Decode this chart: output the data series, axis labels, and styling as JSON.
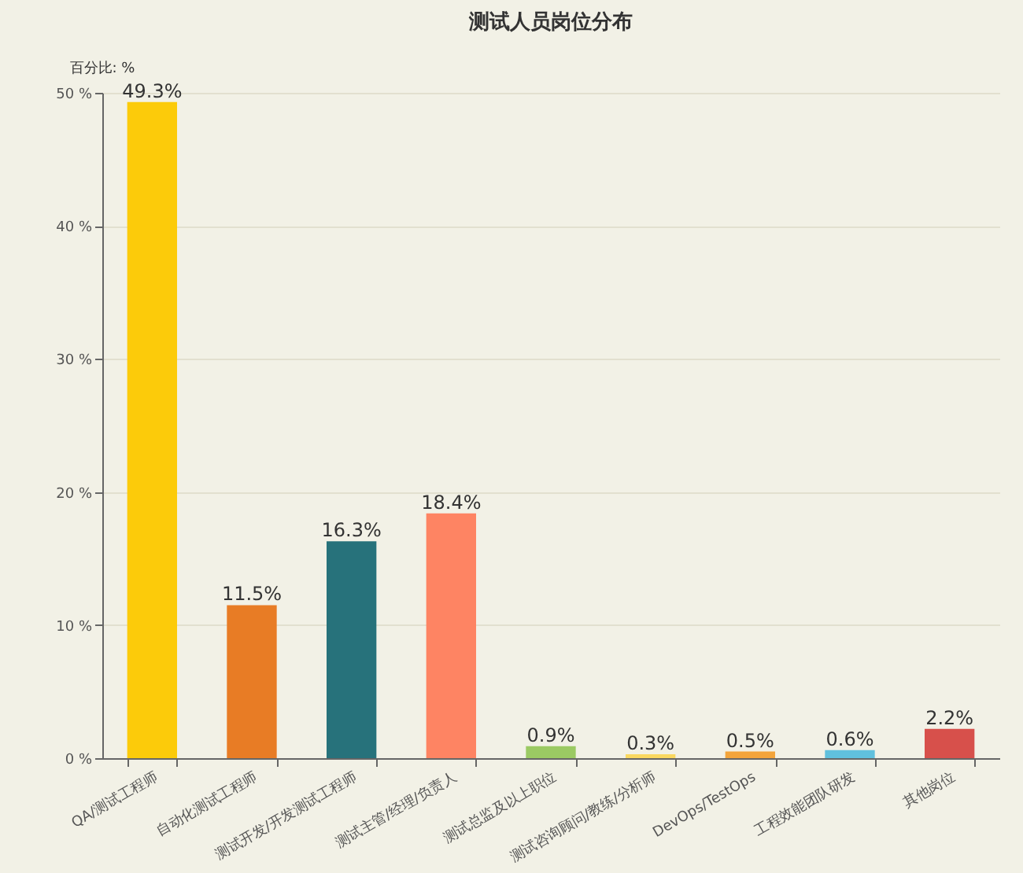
{
  "chart_data": {
    "type": "bar",
    "title": "测试人员岗位分布",
    "ylabel": "百分比: %",
    "categories": [
      "QA/测试工程师",
      "自动化测试工程师",
      "测试开发/开发测试工程师",
      "测试主管/经理/负责人",
      "测试总监及以上职位",
      "测试咨询顾问/教练/分析师",
      "DevOps/TestOps",
      "工程效能团队研发",
      "其他岗位"
    ],
    "values": [
      49.3,
      11.5,
      16.3,
      18.4,
      0.9,
      0.3,
      0.5,
      0.6,
      2.2
    ],
    "colors": [
      "#fccb0a",
      "#e87c25",
      "#27727b",
      "#fe8463",
      "#9bca63",
      "#fad860",
      "#f3a43b",
      "#60c0dd",
      "#d7504b"
    ],
    "value_labels": [
      "49.3%",
      "11.5%",
      "16.3%",
      "18.4%",
      "0.9%",
      "0.3%",
      "0.5%",
      "0.6%",
      "2.2%"
    ],
    "ylim": [
      0,
      50
    ],
    "yticks": [
      {
        "value": 0,
        "label": "0 %"
      },
      {
        "value": 10,
        "label": "10 %"
      },
      {
        "value": 20,
        "label": "20 %"
      },
      {
        "value": 30,
        "label": "30 %"
      },
      {
        "value": 40,
        "label": "40 %"
      },
      {
        "value": 50,
        "label": "50 %"
      }
    ],
    "grid": "y"
  }
}
